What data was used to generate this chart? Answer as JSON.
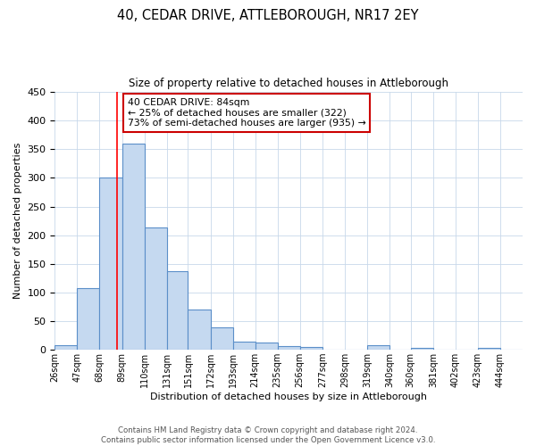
{
  "title": "40, CEDAR DRIVE, ATTLEBOROUGH, NR17 2EY",
  "subtitle": "Size of property relative to detached houses in Attleborough",
  "xlabel": "Distribution of detached houses by size in Attleborough",
  "ylabel": "Number of detached properties",
  "bin_labels": [
    "26sqm",
    "47sqm",
    "68sqm",
    "89sqm",
    "110sqm",
    "131sqm",
    "151sqm",
    "172sqm",
    "193sqm",
    "214sqm",
    "235sqm",
    "256sqm",
    "277sqm",
    "298sqm",
    "319sqm",
    "340sqm",
    "360sqm",
    "381sqm",
    "402sqm",
    "423sqm",
    "444sqm"
  ],
  "bar_heights": [
    8,
    108,
    300,
    360,
    213,
    137,
    70,
    39,
    14,
    12,
    7,
    5,
    0,
    0,
    8,
    0,
    3,
    0,
    0,
    3,
    0
  ],
  "bar_color": "#c5d9f0",
  "bar_edge_color": "#5b8fc9",
  "ylim": [
    0,
    450
  ],
  "yticks": [
    0,
    50,
    100,
    150,
    200,
    250,
    300,
    350,
    400,
    450
  ],
  "red_line_x": 84,
  "bin_edges": [
    26,
    47,
    68,
    89,
    110,
    131,
    151,
    172,
    193,
    214,
    235,
    256,
    277,
    298,
    319,
    340,
    360,
    381,
    402,
    423,
    444,
    465
  ],
  "annotation_title": "40 CEDAR DRIVE: 84sqm",
  "annotation_line1": "← 25% of detached houses are smaller (322)",
  "annotation_line2": "73% of semi-detached houses are larger (935) →",
  "annotation_box_color": "#ffffff",
  "annotation_box_edge_color": "#cc0000",
  "footer_line1": "Contains HM Land Registry data © Crown copyright and database right 2024.",
  "footer_line2": "Contains public sector information licensed under the Open Government Licence v3.0.",
  "background_color": "#ffffff",
  "grid_color": "#c8d8ea"
}
